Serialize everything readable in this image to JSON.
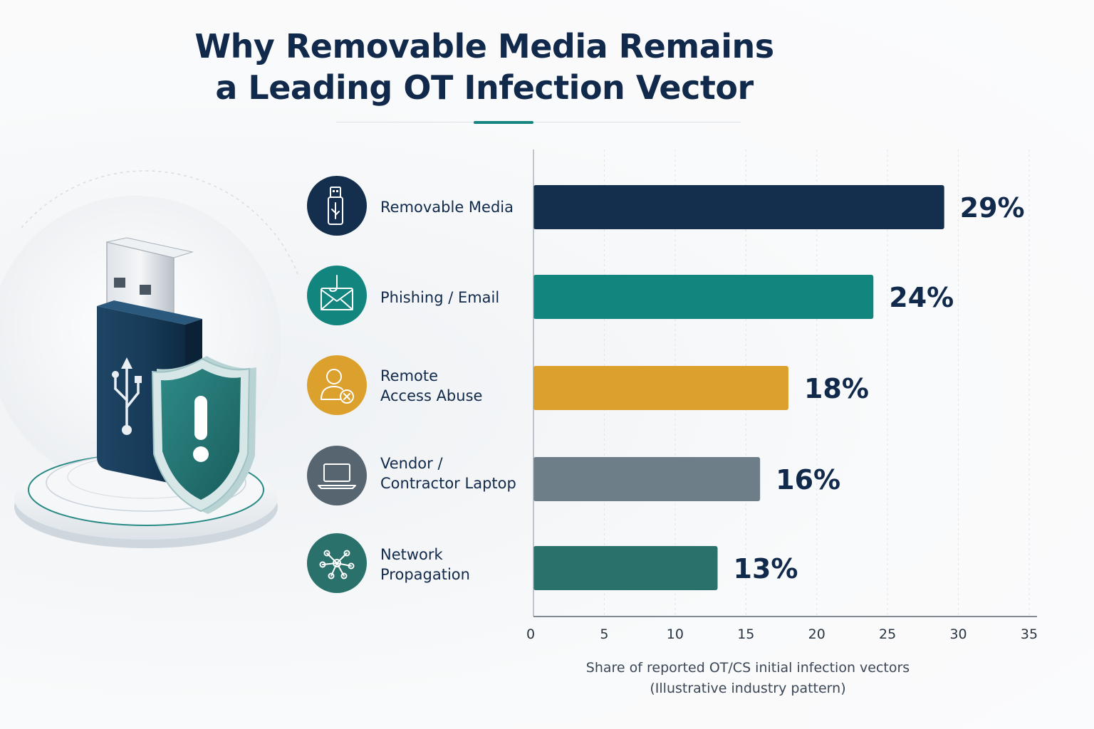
{
  "title": {
    "line1": "Why Removable Media Remains",
    "line2": "a Leading OT Infection Vector"
  },
  "rows": [
    {
      "label": "Removable Media",
      "icon": "usb-drive-icon",
      "color": "#132f4d"
    },
    {
      "label": "Phishing / Email",
      "icon": "phishing-email-icon",
      "color": "#12857f"
    },
    {
      "label": "Remote\nAccess Abuse",
      "icon": "remote-user-icon",
      "color": "#dca12d"
    },
    {
      "label": "Vendor /\nContractor Laptop",
      "icon": "laptop-icon",
      "color": "#6d7e89"
    },
    {
      "label": "Network\nPropagation",
      "icon": "network-nodes-icon",
      "color": "#2a706b"
    }
  ],
  "axis_caption": {
    "line1": "Share of reported OT/CS initial infection vectors",
    "line2": "(Illustrative industry pattern)"
  },
  "chart_data": {
    "type": "bar",
    "orientation": "horizontal",
    "categories": [
      "Removable Media",
      "Phishing / Email",
      "Remote Access Abuse",
      "Vendor / Contractor Laptop",
      "Network Propagation"
    ],
    "values": [
      29,
      24,
      18,
      16,
      13
    ],
    "value_labels": [
      "29%",
      "24%",
      "18%",
      "16%",
      "13%"
    ],
    "colors": [
      "#132f4d",
      "#12857f",
      "#dca12d",
      "#6d7e89",
      "#2a706b"
    ],
    "xlim": [
      0,
      35
    ],
    "xticks": [
      0,
      5,
      10,
      15,
      20,
      25,
      30,
      35
    ],
    "grid": true,
    "xlabel": "Share of reported OT/CS initial infection vectors (Illustrative industry pattern)"
  }
}
